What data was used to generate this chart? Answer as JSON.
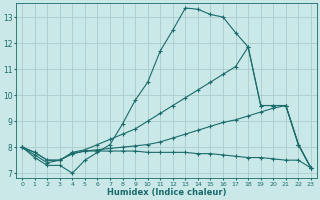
{
  "xlabel": "Humidex (Indice chaleur)",
  "bg_color": "#cbe8e8",
  "grid_color": "#aacccc",
  "line_color": "#1a6b6b",
  "xlim": [
    -0.5,
    23.5
  ],
  "ylim": [
    6.8,
    13.55
  ],
  "yticks": [
    7,
    8,
    9,
    10,
    11,
    12,
    13
  ],
  "xticks": [
    0,
    1,
    2,
    3,
    4,
    5,
    6,
    7,
    8,
    9,
    10,
    11,
    12,
    13,
    14,
    15,
    16,
    17,
    18,
    19,
    20,
    21,
    22,
    23
  ],
  "curves": [
    {
      "x": [
        0,
        1,
        2,
        3,
        4,
        5,
        6,
        7,
        8,
        9,
        10,
        11,
        12,
        13,
        14,
        15,
        16,
        17,
        18,
        19,
        20,
        21,
        22,
        23
      ],
      "y": [
        8.0,
        7.6,
        7.3,
        7.3,
        7.0,
        7.5,
        7.8,
        8.1,
        8.9,
        9.8,
        10.5,
        11.7,
        12.5,
        13.35,
        13.3,
        13.1,
        13.0,
        12.4,
        11.85,
        9.6,
        9.6,
        9.6,
        8.1,
        7.2
      ]
    },
    {
      "x": [
        0,
        1,
        2,
        3,
        4,
        5,
        6,
        7,
        8,
        9,
        10,
        11,
        12,
        13,
        14,
        15,
        16,
        17,
        18,
        19,
        20,
        21,
        22,
        23
      ],
      "y": [
        8.0,
        7.7,
        7.4,
        7.5,
        7.8,
        7.9,
        8.1,
        8.3,
        8.5,
        8.7,
        9.0,
        9.3,
        9.6,
        9.9,
        10.2,
        10.5,
        10.8,
        11.1,
        11.85,
        9.6,
        9.6,
        9.6,
        8.1,
        7.2
      ]
    },
    {
      "x": [
        0,
        1,
        2,
        3,
        4,
        5,
        6,
        7,
        8,
        9,
        10,
        11,
        12,
        13,
        14,
        15,
        16,
        17,
        18,
        19,
        20,
        21,
        22,
        23
      ],
      "y": [
        8.0,
        7.8,
        7.5,
        7.5,
        7.75,
        7.85,
        7.9,
        7.95,
        8.0,
        8.05,
        8.1,
        8.2,
        8.35,
        8.5,
        8.65,
        8.8,
        8.95,
        9.05,
        9.2,
        9.35,
        9.5,
        9.6,
        8.1,
        7.2
      ]
    },
    {
      "x": [
        0,
        1,
        2,
        3,
        4,
        5,
        6,
        7,
        8,
        9,
        10,
        11,
        12,
        13,
        14,
        15,
        16,
        17,
        18,
        19,
        20,
        21,
        22,
        23
      ],
      "y": [
        8.0,
        7.8,
        7.5,
        7.5,
        7.75,
        7.85,
        7.85,
        7.85,
        7.85,
        7.85,
        7.8,
        7.8,
        7.8,
        7.8,
        7.75,
        7.75,
        7.7,
        7.65,
        7.6,
        7.6,
        7.55,
        7.5,
        7.5,
        7.2
      ]
    }
  ]
}
